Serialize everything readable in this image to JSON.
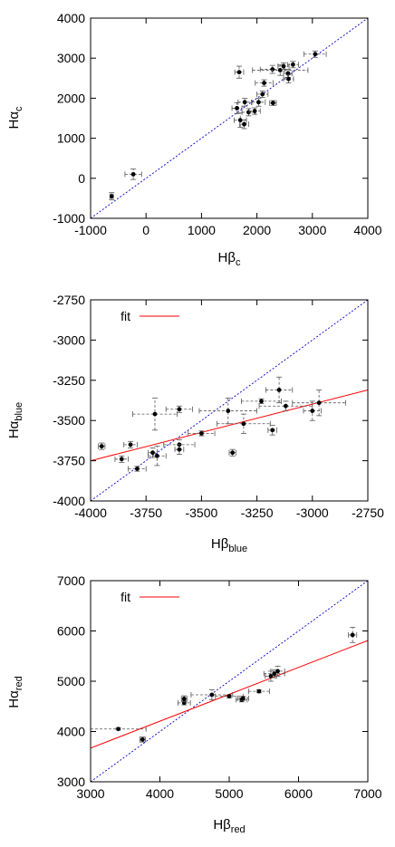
{
  "chart_data": [
    {
      "type": "scatter",
      "id": "c",
      "xlabel": {
        "base": "Hβ",
        "sub": "c"
      },
      "ylabel": {
        "base": "Hα",
        "sub": "c"
      },
      "xlim": [
        -1000,
        4000
      ],
      "ylim": [
        -1000,
        4000
      ],
      "xticks": [
        -1000,
        0,
        1000,
        2000,
        3000,
        4000
      ],
      "yticks": [
        -1000,
        0,
        1000,
        2000,
        3000,
        4000
      ],
      "grid": false,
      "legend": null,
      "reference_line": "y = x",
      "fit": null,
      "points": [
        {
          "x": -620,
          "y": -450,
          "xerr": 30,
          "yerr": 90
        },
        {
          "x": -230,
          "y": 100,
          "xerr": 150,
          "yerr": 130
        },
        {
          "x": 1680,
          "y": 2650,
          "xerr": 80,
          "yerr": 150
        },
        {
          "x": 1640,
          "y": 1750,
          "xerr": 90,
          "yerr": 140
        },
        {
          "x": 1700,
          "y": 1450,
          "xerr": 110,
          "yerr": 180
        },
        {
          "x": 1780,
          "y": 1900,
          "xerr": 120,
          "yerr": 100
        },
        {
          "x": 1770,
          "y": 1350,
          "xerr": 80,
          "yerr": 110
        },
        {
          "x": 1850,
          "y": 1650,
          "xerr": 120,
          "yerr": 90
        },
        {
          "x": 1960,
          "y": 1680,
          "xerr": 100,
          "yerr": 80
        },
        {
          "x": 2030,
          "y": 1900,
          "xerr": 120,
          "yerr": 100
        },
        {
          "x": 2100,
          "y": 2100,
          "xerr": 100,
          "yerr": 80
        },
        {
          "x": 2130,
          "y": 2380,
          "xerr": 160,
          "yerr": 80
        },
        {
          "x": 2290,
          "y": 1880,
          "xerr": 60,
          "yerr": 60
        },
        {
          "x": 2280,
          "y": 2720,
          "xerr": 220,
          "yerr": 100
        },
        {
          "x": 2420,
          "y": 2700,
          "xerr": 500,
          "yerr": 130
        },
        {
          "x": 2480,
          "y": 2800,
          "xerr": 100,
          "yerr": 80
        },
        {
          "x": 2560,
          "y": 2620,
          "xerr": 80,
          "yerr": 100
        },
        {
          "x": 2570,
          "y": 2480,
          "xerr": 90,
          "yerr": 100
        },
        {
          "x": 2650,
          "y": 2840,
          "xerr": 100,
          "yerr": 80
        },
        {
          "x": 3050,
          "y": 3100,
          "xerr": 200,
          "yerr": 80
        }
      ]
    },
    {
      "type": "scatter",
      "id": "blue",
      "xlabel": {
        "base": "Hβ",
        "sub": "blue"
      },
      "ylabel": {
        "base": "Hα",
        "sub": "blue"
      },
      "xlim": [
        -4000,
        -2750
      ],
      "ylim": [
        -4000,
        -2750
      ],
      "xticks": [
        -4000,
        -3750,
        -3500,
        -3250,
        -3000,
        -2750
      ],
      "yticks": [
        -4000,
        -3750,
        -3500,
        -3250,
        -3000,
        -2750
      ],
      "grid": false,
      "legend": {
        "position": "top-left",
        "entries": [
          {
            "label": "fit",
            "color": "#ff0000"
          }
        ]
      },
      "reference_line": "y = x",
      "fit": {
        "color": "#ff0000",
        "x": [
          -4000,
          -2750
        ],
        "y": [
          -3750,
          -3310
        ]
      },
      "points": [
        {
          "x": -3950,
          "y": -3660,
          "xerr": 15,
          "yerr": 20
        },
        {
          "x": -3860,
          "y": -3740,
          "xerr": 30,
          "yerr": 20
        },
        {
          "x": -3820,
          "y": -3650,
          "xerr": 30,
          "yerr": 20
        },
        {
          "x": -3790,
          "y": -3800,
          "xerr": 40,
          "yerr": 15
        },
        {
          "x": -3710,
          "y": -3460,
          "xerr": 100,
          "yerr": 100
        },
        {
          "x": -3720,
          "y": -3700,
          "xerr": 20,
          "yerr": 30
        },
        {
          "x": -3700,
          "y": -3720,
          "xerr": 40,
          "yerr": 60
        },
        {
          "x": -3600,
          "y": -3430,
          "xerr": 60,
          "yerr": 20
        },
        {
          "x": -3600,
          "y": -3650,
          "xerr": 70,
          "yerr": 30
        },
        {
          "x": -3600,
          "y": -3680,
          "xerr": 20,
          "yerr": 30
        },
        {
          "x": -3500,
          "y": -3580,
          "xerr": 60,
          "yerr": 15
        },
        {
          "x": -3380,
          "y": -3440,
          "xerr": 130,
          "yerr": 80
        },
        {
          "x": -3360,
          "y": -3700,
          "xerr": 15,
          "yerr": 20
        },
        {
          "x": -3310,
          "y": -3520,
          "xerr": 120,
          "yerr": 60
        },
        {
          "x": -3230,
          "y": -3380,
          "xerr": 90,
          "yerr": 15
        },
        {
          "x": -3180,
          "y": -3560,
          "xerr": 20,
          "yerr": 30
        },
        {
          "x": -3150,
          "y": -3310,
          "xerr": 60,
          "yerr": 80
        },
        {
          "x": -3120,
          "y": -3410,
          "xerr": 120,
          "yerr": 30
        },
        {
          "x": -3000,
          "y": -3440,
          "xerr": 40,
          "yerr": 60
        },
        {
          "x": -2970,
          "y": -3390,
          "xerr": 120,
          "yerr": 80
        }
      ]
    },
    {
      "type": "scatter",
      "id": "red",
      "xlabel": {
        "base": "Hβ",
        "sub": "red"
      },
      "ylabel": {
        "base": "Hα",
        "sub": "red"
      },
      "xlim": [
        3000,
        7000
      ],
      "ylim": [
        3000,
        7000
      ],
      "xticks": [
        3000,
        4000,
        5000,
        6000,
        7000
      ],
      "yticks": [
        3000,
        4000,
        5000,
        6000,
        7000
      ],
      "grid": false,
      "legend": {
        "position": "top-left",
        "entries": [
          {
            "label": "fit",
            "color": "#ff0000"
          }
        ]
      },
      "reference_line": "y = x",
      "fit": {
        "color": "#ff0000",
        "x": [
          3000,
          7000
        ],
        "y": [
          3670,
          5810
        ]
      },
      "points": [
        {
          "x": 3400,
          "y": 4050,
          "xerr": 400,
          "yerr": 20
        },
        {
          "x": 3750,
          "y": 3840,
          "xerr": 40,
          "yerr": 50
        },
        {
          "x": 4350,
          "y": 4570,
          "xerr": 90,
          "yerr": 40
        },
        {
          "x": 4350,
          "y": 4650,
          "xerr": 40,
          "yerr": 60
        },
        {
          "x": 4750,
          "y": 4730,
          "xerr": 300,
          "yerr": 100
        },
        {
          "x": 5000,
          "y": 4700,
          "xerr": 200,
          "yerr": 30
        },
        {
          "x": 5180,
          "y": 4630,
          "xerr": 80,
          "yerr": 40
        },
        {
          "x": 5200,
          "y": 4660,
          "xerr": 80,
          "yerr": 40
        },
        {
          "x": 5430,
          "y": 4800,
          "xerr": 150,
          "yerr": 30
        },
        {
          "x": 5600,
          "y": 5100,
          "xerr": 80,
          "yerr": 100
        },
        {
          "x": 5650,
          "y": 5150,
          "xerr": 150,
          "yerr": 80
        },
        {
          "x": 5700,
          "y": 5200,
          "xerr": 100,
          "yerr": 100
        },
        {
          "x": 6780,
          "y": 5920,
          "xerr": 60,
          "yerr": 150
        }
      ]
    }
  ]
}
